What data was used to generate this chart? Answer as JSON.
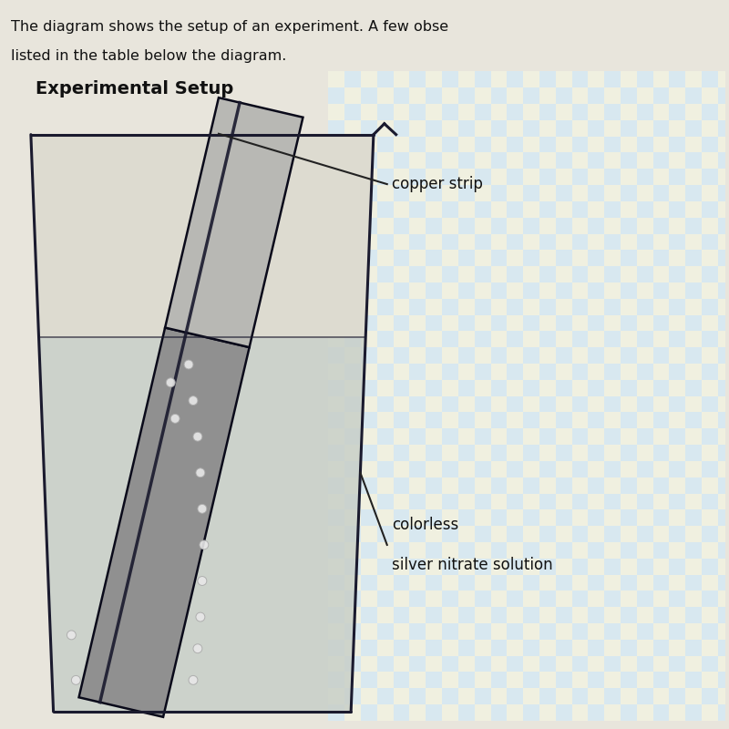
{
  "background_color": "#e8e5dc",
  "title_text": "Experimental Setup",
  "title_fontsize": 14,
  "title_fontweight": "bold",
  "header_text1": "The diagram shows the setup of an experiment. A few obse",
  "header_text2": "listed in the table below the diagram.",
  "header_fontsize": 11.5,
  "beaker_outline": "#1a1a2e",
  "solution_color": "#c8cfc8",
  "solution_color_alpha": 0.85,
  "upper_beaker_color": "#dddbd0",
  "strip_above_color": "#b8b8b4",
  "strip_below_color": "#909090",
  "strip_outline": "#0a0a1a",
  "strip_center_color": "#1a1a2e",
  "label_copper": "copper strip",
  "label_solution1": "colorless",
  "label_solution2": "silver nitrate solution",
  "label_fontsize": 12,
  "line_color": "#222222",
  "check_color1": "#d8e8f0",
  "check_color2": "#f0f0e0",
  "bubble_color": "#e8e8e8",
  "bubble_edge": "#aaaaaa"
}
